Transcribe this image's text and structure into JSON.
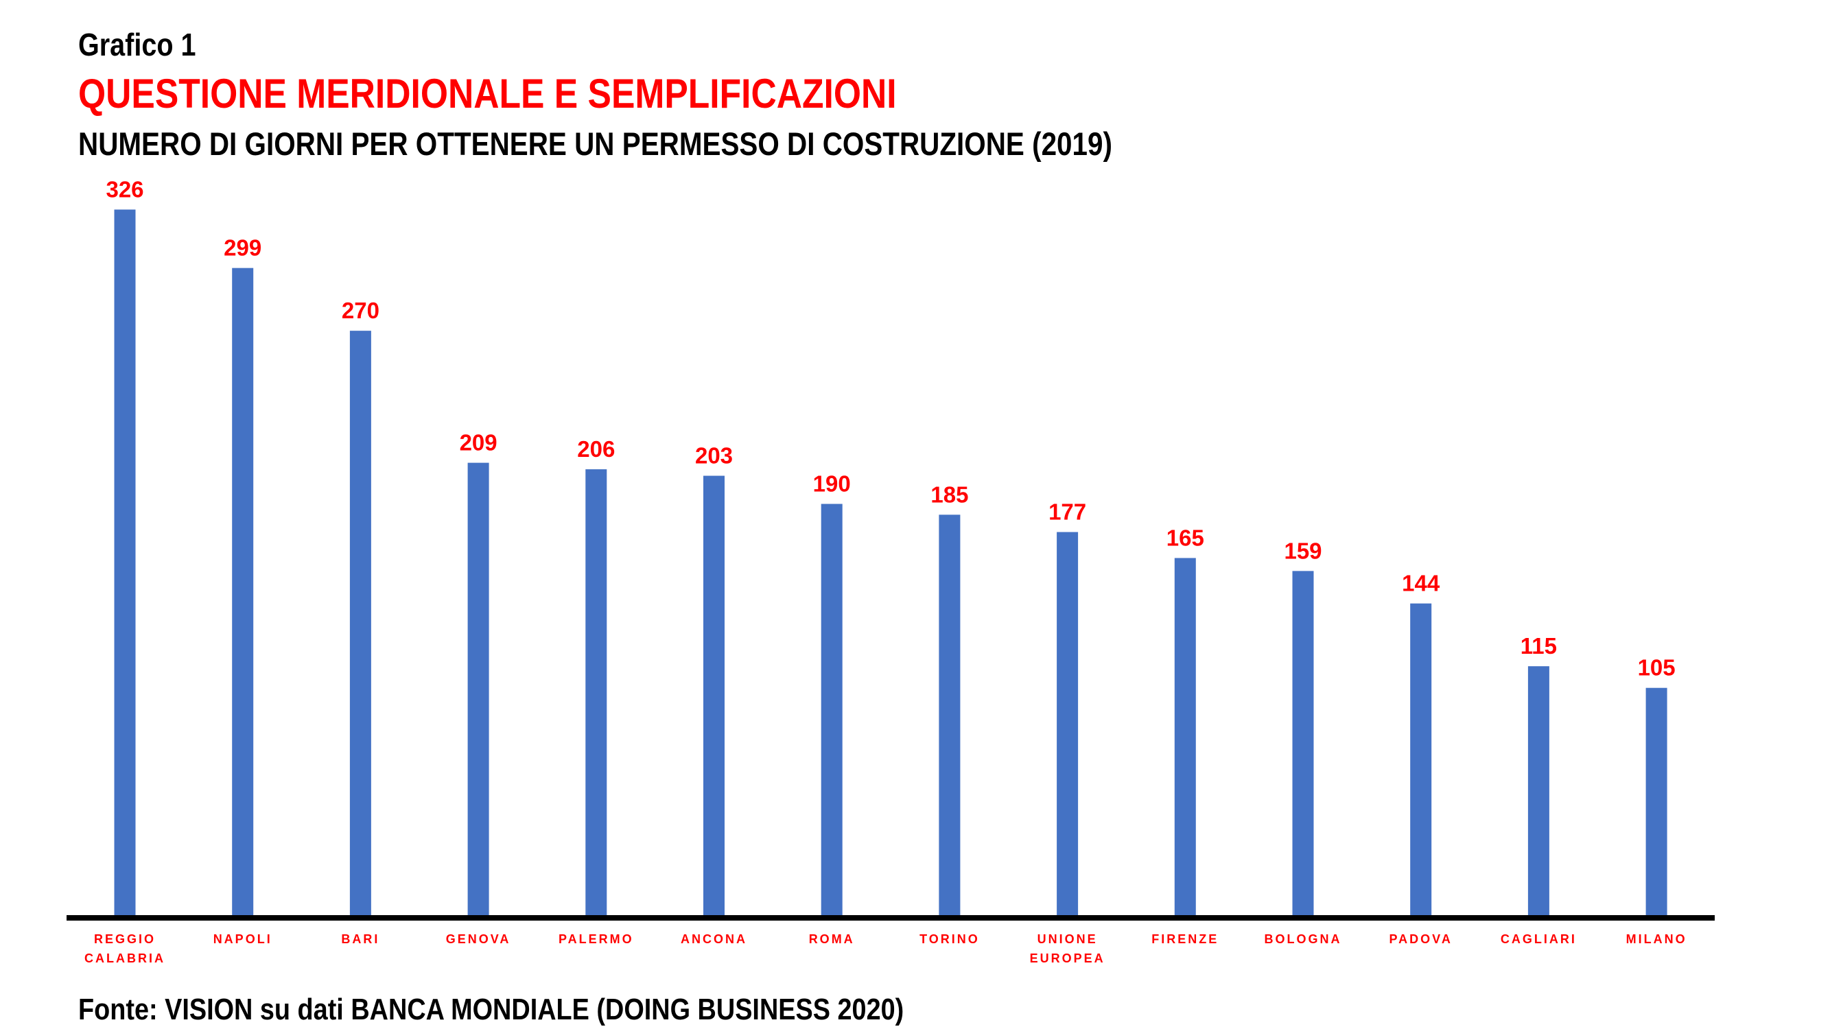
{
  "header": {
    "label": "Grafico 1",
    "title": "QUESTIONE MERIDIONALE E SEMPLIFICAZIONI",
    "subtitle": "NUMERO DI GIORNI PER OTTENERE UN PERMESSO DI COSTRUZIONE (2019)"
  },
  "footer": {
    "source": "Fonte: VISION su dati BANCA MONDIALE (DOING BUSINESS 2020)"
  },
  "chart_data": {
    "type": "bar",
    "title": "NUMERO DI GIORNI PER OTTENERE UN PERMESSO DI COSTRUZIONE (2019)",
    "categories": [
      [
        "REGGIO",
        "CALABRIA"
      ],
      [
        "NAPOLI"
      ],
      [
        "BARI"
      ],
      [
        "GENOVA"
      ],
      [
        "PALERMO"
      ],
      [
        "ANCONA"
      ],
      [
        "ROMA"
      ],
      [
        "TORINO"
      ],
      [
        "UNIONE",
        "EUROPEA"
      ],
      [
        "FIRENZE"
      ],
      [
        "BOLOGNA"
      ],
      [
        "PADOVA"
      ],
      [
        "CAGLIARI"
      ],
      [
        "MILANO"
      ]
    ],
    "values": [
      326,
      299,
      270,
      209,
      206,
      203,
      190,
      185,
      177,
      165,
      159,
      144,
      115,
      105
    ],
    "xlabel": "",
    "ylabel": "",
    "ylim": [
      0,
      326
    ],
    "grid": false,
    "legend": "none",
    "data_labels": true,
    "colors": {
      "bar": "#4472c4",
      "labels": "#ff0000",
      "axis": "#000000"
    }
  }
}
